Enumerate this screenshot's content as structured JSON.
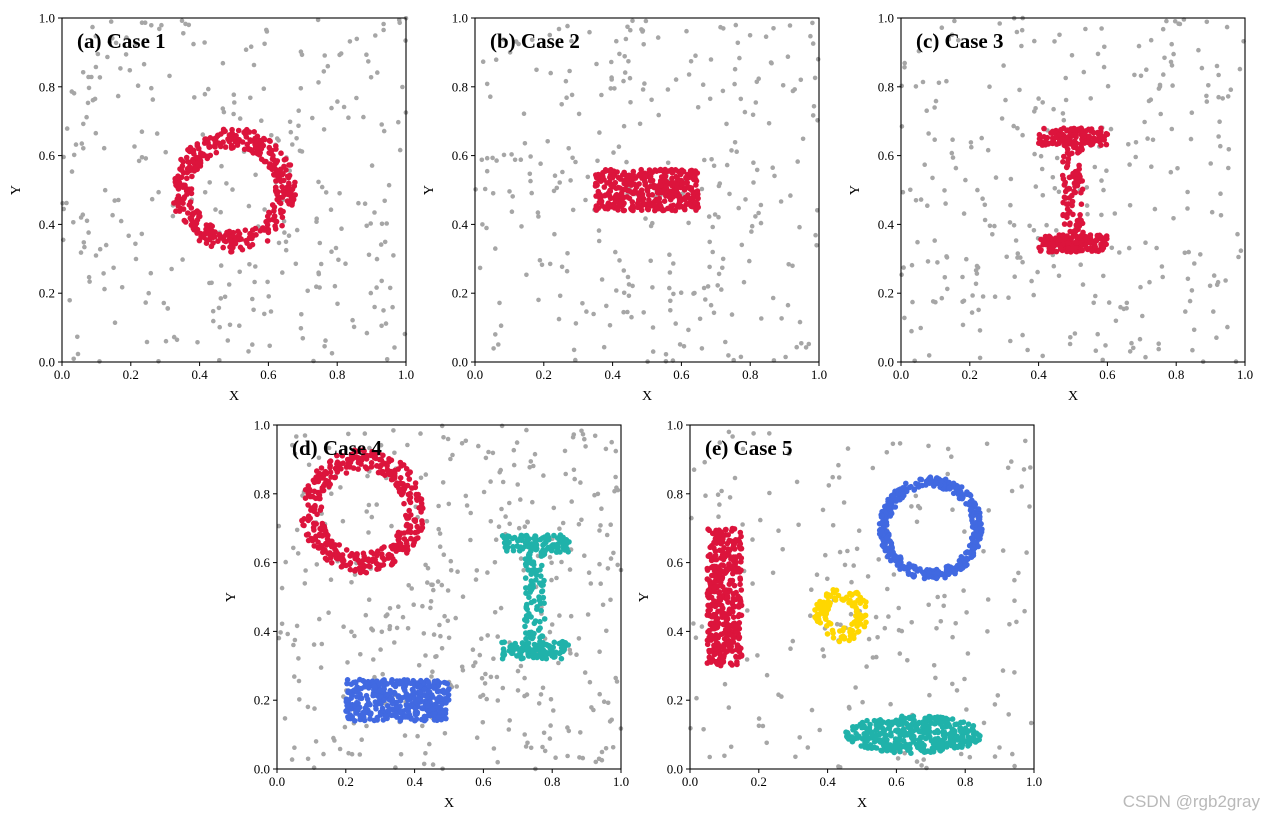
{
  "figure": {
    "watermark": "CSDN @rgb2gray"
  },
  "colors": {
    "background": "#a6a6a6",
    "red": "#dc143c",
    "blue": "#4169e1",
    "teal": "#20b2aa",
    "yellow": "#ffd700"
  },
  "chart_data": [
    {
      "type": "scatter",
      "title": "(a) Case 1",
      "xlabel": "X",
      "ylabel": "Y",
      "xlim": [
        0,
        1
      ],
      "ylim": [
        0,
        1
      ],
      "xticks": [
        "0.0",
        "0.2",
        "0.4",
        "0.6",
        "0.8",
        "1.0"
      ],
      "yticks": [
        "0.0",
        "0.2",
        "0.4",
        "0.6",
        "0.8",
        "1.0"
      ],
      "noise_points": 300,
      "clusters": [
        {
          "shape": "ring",
          "color": "red",
          "center": [
            0.5,
            0.5
          ],
          "r_inner": 0.12,
          "r_outer": 0.18,
          "points": 400
        }
      ]
    },
    {
      "type": "scatter",
      "title": "(b) Case 2",
      "xlabel": "X",
      "ylabel": "Y",
      "xlim": [
        0,
        1
      ],
      "ylim": [
        0,
        1
      ],
      "xticks": [
        "0.0",
        "0.2",
        "0.4",
        "0.6",
        "0.8",
        "1.0"
      ],
      "yticks": [
        "0.0",
        "0.2",
        "0.4",
        "0.6",
        "0.8",
        "1.0"
      ],
      "noise_points": 300,
      "clusters": [
        {
          "shape": "rect",
          "color": "red",
          "x": [
            0.35,
            0.65
          ],
          "y": [
            0.44,
            0.56
          ],
          "points": 400
        }
      ]
    },
    {
      "type": "scatter",
      "title": "(c) Case 3",
      "xlabel": "X",
      "ylabel": "Y",
      "xlim": [
        0,
        1
      ],
      "ylim": [
        0,
        1
      ],
      "xticks": [
        "0.0",
        "0.2",
        "0.4",
        "0.6",
        "0.8",
        "1.0"
      ],
      "yticks": [
        "0.0",
        "0.2",
        "0.4",
        "0.6",
        "0.8",
        "1.0"
      ],
      "noise_points": 300,
      "clusters": [
        {
          "shape": "ibeam",
          "color": "red",
          "x": [
            0.4,
            0.6
          ],
          "y": [
            0.32,
            0.68
          ],
          "bar_h": 0.05,
          "stem_w": 0.06,
          "points": 400
        }
      ]
    },
    {
      "type": "scatter",
      "title": "(d) Case 4",
      "xlabel": "X",
      "ylabel": "Y",
      "xlim": [
        0,
        1
      ],
      "ylim": [
        0,
        1
      ],
      "xticks": [
        "0.0",
        "0.2",
        "0.4",
        "0.6",
        "0.8",
        "1.0"
      ],
      "yticks": [
        "0.0",
        "0.2",
        "0.4",
        "0.6",
        "0.8",
        "1.0"
      ],
      "noise_points": 400,
      "clusters": [
        {
          "shape": "ring",
          "color": "red",
          "center": [
            0.25,
            0.75
          ],
          "r_inner": 0.12,
          "r_outer": 0.18,
          "points": 400
        },
        {
          "shape": "ibeam",
          "color": "teal",
          "x": [
            0.65,
            0.85
          ],
          "y": [
            0.32,
            0.68
          ],
          "bar_h": 0.05,
          "stem_w": 0.06,
          "points": 300
        },
        {
          "shape": "rect",
          "color": "blue",
          "x": [
            0.2,
            0.5
          ],
          "y": [
            0.14,
            0.26
          ],
          "points": 400
        }
      ]
    },
    {
      "type": "scatter",
      "title": "(e) Case 5",
      "xlabel": "X",
      "ylabel": "Y",
      "xlim": [
        0,
        1
      ],
      "ylim": [
        0,
        1
      ],
      "xticks": [
        "0.0",
        "0.2",
        "0.4",
        "0.6",
        "0.8",
        "1.0"
      ],
      "yticks": [
        "0.0",
        "0.2",
        "0.4",
        "0.6",
        "0.8",
        "1.0"
      ],
      "noise_points": 200,
      "clusters": [
        {
          "shape": "rect",
          "color": "red",
          "x": [
            0.05,
            0.15
          ],
          "y": [
            0.3,
            0.7
          ],
          "points": 400
        },
        {
          "shape": "ring",
          "color": "yellow",
          "center": [
            0.44,
            0.45
          ],
          "r_inner": 0.04,
          "r_outer": 0.08,
          "points": 120
        },
        {
          "shape": "ring",
          "color": "blue",
          "center": [
            0.7,
            0.7
          ],
          "r_inner": 0.12,
          "r_outer": 0.15,
          "points": 400
        },
        {
          "shape": "ellipse",
          "color": "teal",
          "center": [
            0.65,
            0.1
          ],
          "rx": 0.2,
          "ry": 0.055,
          "points": 400
        }
      ]
    }
  ]
}
